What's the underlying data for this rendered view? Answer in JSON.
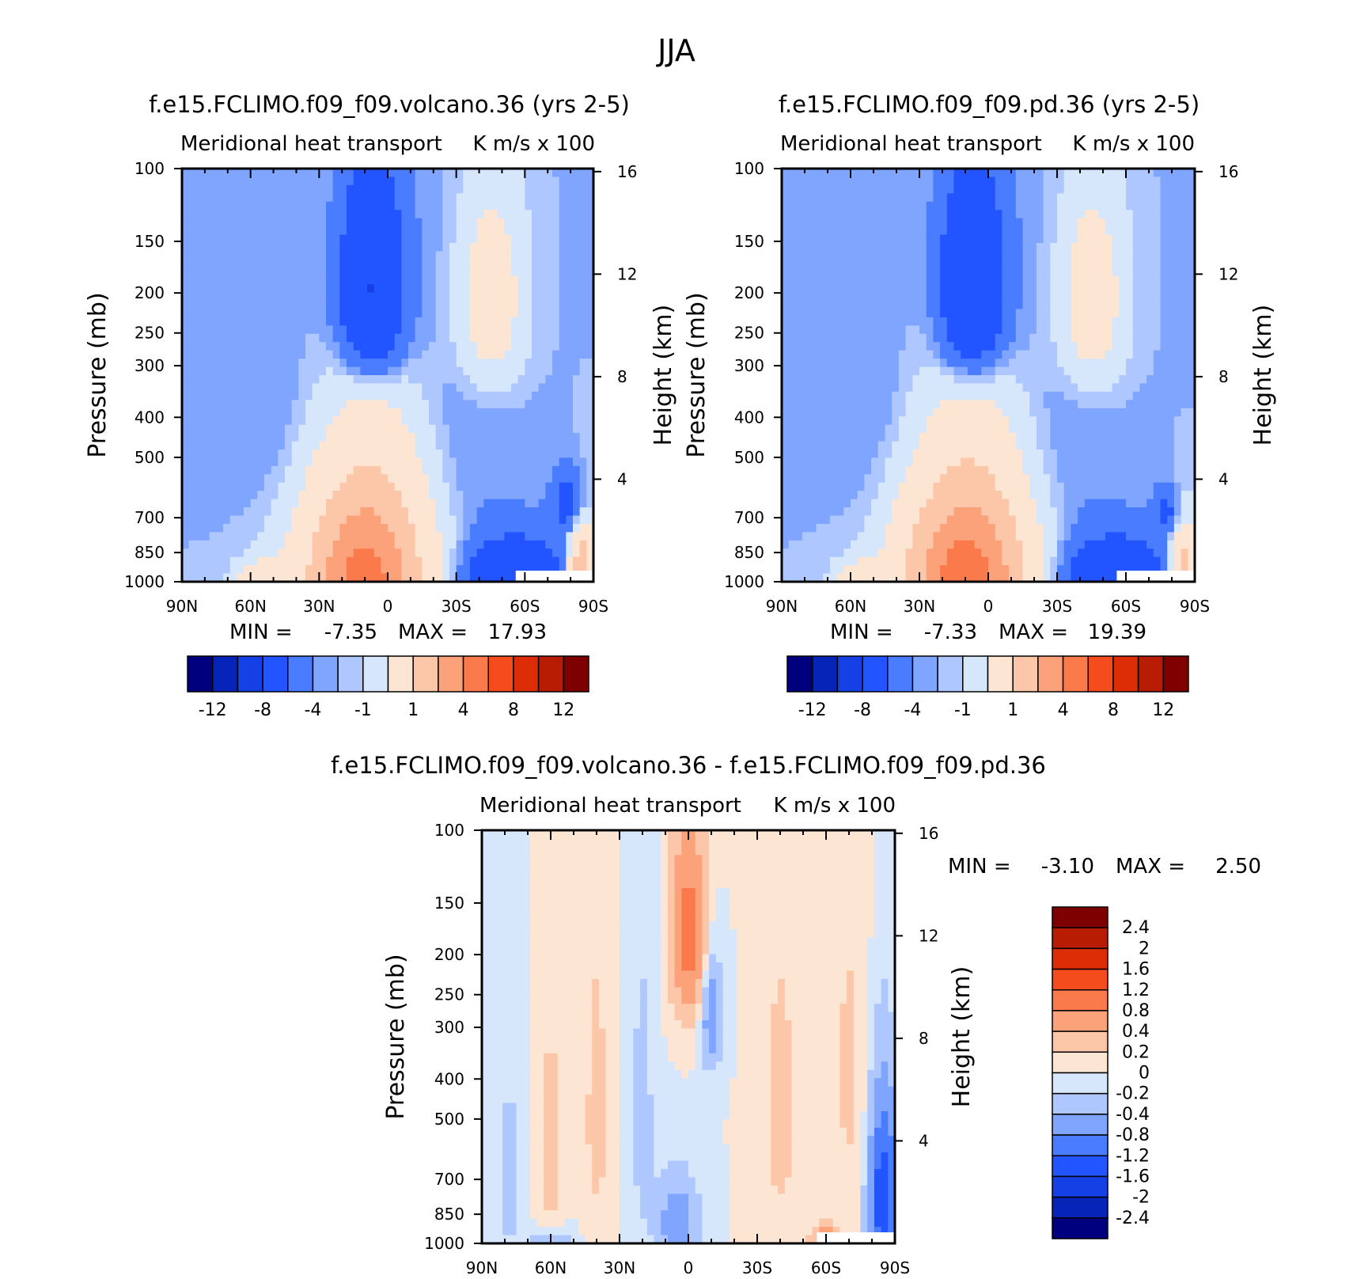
{
  "page_title": "JJA",
  "colors": {
    "main_scale": [
      "#00007f",
      "#0724b8",
      "#1440e6",
      "#2255ff",
      "#4a7cff",
      "#7fa5ff",
      "#aec8ff",
      "#d6e7fb",
      "#fde5d3",
      "#fcc6a8",
      "#fba27a",
      "#fa7a4c",
      "#f54c1e",
      "#dc2d06",
      "#b81c02",
      "#7f0000"
    ],
    "diff_scale": [
      "#00007f",
      "#0724b8",
      "#1440e6",
      "#2255ff",
      "#4a7cff",
      "#7fa5ff",
      "#aec8ff",
      "#d6e7fb",
      "#fde5d3",
      "#fcc6a8",
      "#fba27a",
      "#fa7a4c",
      "#f54c1e",
      "#dc2d06",
      "#b81c02",
      "#7f0000"
    ]
  },
  "chart_data": [
    {
      "type": "heatmap",
      "title": "f.e15.FCLIMO.f09_f09.volcano.36 (yrs 2-5)",
      "left_subtitle": "Meridional heat transport",
      "right_subtitle": "K m/s x 100",
      "ylabel": "Pressure (mb)",
      "right_ylabel": "Height (km)",
      "x_ticks": [
        "90N",
        "60N",
        "30N",
        "0",
        "30S",
        "60S",
        "90S"
      ],
      "y_ticks": [
        "100",
        "150",
        "200",
        "250",
        "300",
        "400",
        "500",
        "700",
        "850",
        "1000"
      ],
      "right_ticks": [
        "16",
        "12",
        "8",
        "4"
      ],
      "min_label": "MIN =",
      "min_value": "-7.35",
      "max_label": "MAX =",
      "max_value": "17.93",
      "colorbar_labels": [
        "-12",
        "-8",
        "-4",
        "-1",
        "1",
        "4",
        "8",
        "12"
      ],
      "features": [
        {
          "lat": 10,
          "p": 1000,
          "value": 16,
          "sx": 18,
          "sy": 350
        },
        {
          "lat": 7,
          "p": 200,
          "value": -7,
          "sx": 10,
          "sy": 80
        },
        {
          "lat": -45,
          "p": 210,
          "value": 4,
          "sx": 10,
          "sy": 80
        },
        {
          "lat": -55,
          "p": 1000,
          "value": -6,
          "sx": 15,
          "sy": 150
        },
        {
          "lat": -85,
          "p": 950,
          "value": 9,
          "sx": 4,
          "sy": 180
        },
        {
          "lat": -80,
          "p": 650,
          "value": -4,
          "sx": 5,
          "sy": 80
        },
        {
          "lat": 55,
          "p": 1000,
          "value": 4,
          "sx": 8,
          "sy": 80
        },
        {
          "lat": 47,
          "p": 1000,
          "value": -2,
          "sx": 5,
          "sy": 50
        },
        {
          "lat": 45,
          "p": 400,
          "value": -0.7,
          "sx": 15,
          "sy": 200
        },
        {
          "lat": -30,
          "p": 450,
          "value": -0.6,
          "sx": 20,
          "sy": 300
        },
        {
          "lat": 20,
          "p": 550,
          "value": -0.5,
          "sx": 10,
          "sy": 250
        }
      ]
    },
    {
      "type": "heatmap",
      "title": "f.e15.FCLIMO.f09_f09.pd.36 (yrs 2-5)",
      "left_subtitle": "Meridional heat transport",
      "right_subtitle": "K m/s x 100",
      "ylabel": "Pressure (mb)",
      "right_ylabel": "Height (km)",
      "x_ticks": [
        "90N",
        "60N",
        "30N",
        "0",
        "30S",
        "60S",
        "90S"
      ],
      "y_ticks": [
        "100",
        "150",
        "200",
        "250",
        "300",
        "400",
        "500",
        "700",
        "850",
        "1000"
      ],
      "right_ticks": [
        "16",
        "12",
        "8",
        "4"
      ],
      "min_label": "MIN =",
      "min_value": "-7.33",
      "max_label": "MAX =",
      "max_value": "19.39",
      "colorbar_labels": [
        "-12",
        "-8",
        "-4",
        "-1",
        "1",
        "4",
        "8",
        "12"
      ],
      "features": [
        {
          "lat": 10,
          "p": 1000,
          "value": 17,
          "sx": 18,
          "sy": 350
        },
        {
          "lat": 7,
          "p": 200,
          "value": -7,
          "sx": 10,
          "sy": 80
        },
        {
          "lat": -45,
          "p": 210,
          "value": 4,
          "sx": 10,
          "sy": 80
        },
        {
          "lat": -55,
          "p": 1000,
          "value": -6,
          "sx": 15,
          "sy": 150
        },
        {
          "lat": -85,
          "p": 950,
          "value": 8,
          "sx": 4,
          "sy": 160
        },
        {
          "lat": -78,
          "p": 680,
          "value": -3,
          "sx": 4,
          "sy": 60
        },
        {
          "lat": 55,
          "p": 1000,
          "value": 4,
          "sx": 8,
          "sy": 80
        },
        {
          "lat": 47,
          "p": 1000,
          "value": -2,
          "sx": 5,
          "sy": 50
        },
        {
          "lat": 45,
          "p": 400,
          "value": -0.7,
          "sx": 15,
          "sy": 200
        },
        {
          "lat": -30,
          "p": 450,
          "value": -0.6,
          "sx": 20,
          "sy": 300
        },
        {
          "lat": 20,
          "p": 550,
          "value": -0.5,
          "sx": 10,
          "sy": 250
        }
      ]
    },
    {
      "type": "heatmap",
      "title": "f.e15.FCLIMO.f09_f09.volcano.36 - f.e15.FCLIMO.f09_f09.pd.36",
      "left_subtitle": "Meridional heat transport",
      "right_subtitle": "K m/s x 100",
      "ylabel": "Pressure (mb)",
      "right_ylabel": "Height (km)",
      "x_ticks": [
        "90N",
        "60N",
        "30N",
        "0",
        "30S",
        "60S",
        "90S"
      ],
      "y_ticks": [
        "100",
        "150",
        "200",
        "250",
        "300",
        "400",
        "500",
        "700",
        "850",
        "1000"
      ],
      "right_ticks": [
        "16",
        "12",
        "8",
        "4"
      ],
      "min_label": "MIN =",
      "min_value": "-3.10",
      "max_label": "MAX =",
      "max_value": "2.50",
      "colorbar_labels": [
        "2.4",
        "2",
        "1.6",
        "1.2",
        "0.8",
        "0.4",
        "0.2",
        "0",
        "-0.2",
        "-0.4",
        "-0.8",
        "-1.2",
        "-1.6",
        "-2",
        "-2.4"
      ],
      "features": [
        {
          "lat": 0,
          "p": 180,
          "value": 0.8,
          "sx": 5,
          "sy": 60
        },
        {
          "lat": -10,
          "p": 280,
          "value": -0.5,
          "sx": 3,
          "sy": 60
        },
        {
          "lat": 5,
          "p": 900,
          "value": -0.5,
          "sx": 6,
          "sy": 150
        },
        {
          "lat": -85,
          "p": 800,
          "value": -1.4,
          "sx": 4,
          "sy": 250
        },
        {
          "lat": -60,
          "p": 1000,
          "value": 0.6,
          "sx": 4,
          "sy": 60
        },
        {
          "lat": 60,
          "p": 1000,
          "value": -0.4,
          "sx": 6,
          "sy": 50
        },
        {
          "lat": 40,
          "p": 500,
          "value": 0.15,
          "sx": 4,
          "sy": 300
        },
        {
          "lat": 60,
          "p": 600,
          "value": 0.15,
          "sx": 4,
          "sy": 300
        },
        {
          "lat": -40,
          "p": 500,
          "value": 0.15,
          "sx": 6,
          "sy": 300
        },
        {
          "lat": -70,
          "p": 400,
          "value": 0.12,
          "sx": 6,
          "sy": 300
        },
        {
          "lat": 20,
          "p": 500,
          "value": -0.15,
          "sx": 4,
          "sy": 300
        },
        {
          "lat": 78,
          "p": 700,
          "value": -0.15,
          "sx": 4,
          "sy": 300
        }
      ]
    }
  ]
}
